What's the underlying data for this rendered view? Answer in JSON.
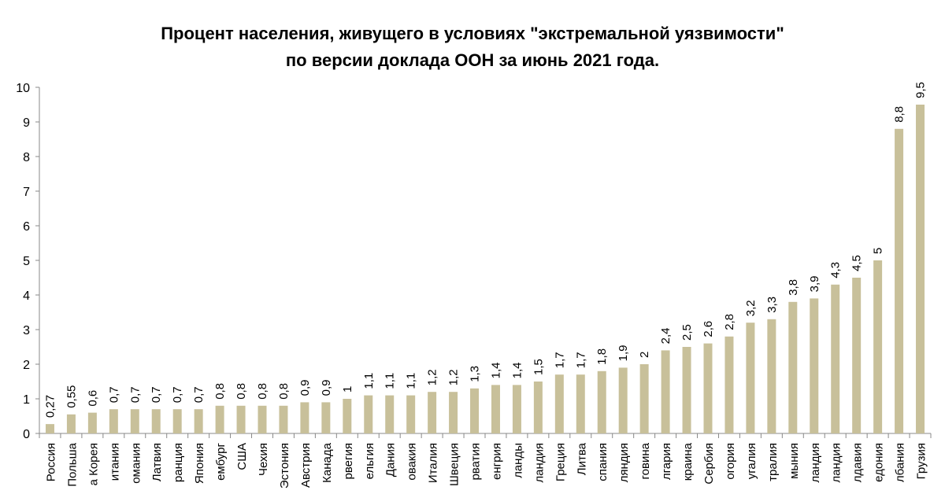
{
  "chart_data": {
    "type": "bar",
    "title_lines": [
      "Процент населения, живущего в условиях \"экстремальной уязвимости\"",
      "по версии доклада ООН за июнь 2021 года."
    ],
    "xlabel": "",
    "ylabel": "",
    "ylim": [
      0,
      10
    ],
    "yticks": [
      0,
      1,
      2,
      3,
      4,
      5,
      6,
      7,
      8,
      9,
      10
    ],
    "grid": false,
    "bar_color": "#c8c09a",
    "categories": [
      "Россия",
      "Польша",
      "а Корея",
      "итания",
      "омания",
      "Латвия",
      "ранция",
      "Япония",
      "ембург",
      "США",
      "Чехия",
      "Эстония",
      "Австрия",
      "Канада",
      "рвегия",
      "ельгия",
      "Дания",
      "овакия",
      "Италия",
      "Швеция",
      "рватия",
      "енгрия",
      "ланды",
      "ландия",
      "Греция",
      "Литва",
      "спания",
      "ляндия",
      "говина",
      "лгария",
      "краина",
      "Сербия",
      "огория",
      "угалия",
      "тралия",
      "мыния",
      "ландия",
      "ландия",
      "лдавия",
      "едония",
      "лбания",
      "Грузия"
    ],
    "values": [
      0.27,
      0.55,
      0.6,
      0.7,
      0.7,
      0.7,
      0.7,
      0.7,
      0.8,
      0.8,
      0.8,
      0.8,
      0.9,
      0.9,
      1,
      1.1,
      1.1,
      1.1,
      1.2,
      1.2,
      1.3,
      1.4,
      1.4,
      1.5,
      1.7,
      1.7,
      1.8,
      1.9,
      2,
      2.4,
      2.5,
      2.6,
      2.8,
      3.2,
      3.3,
      3.8,
      3.9,
      4.3,
      4.5,
      5,
      8.8,
      9.5
    ],
    "data_labels": [
      "0,27",
      "0,55",
      "0,6",
      "0,7",
      "0,7",
      "0,7",
      "0,7",
      "0,7",
      "0,8",
      "0,8",
      "0,8",
      "0,8",
      "0,9",
      "0,9",
      "1",
      "1,1",
      "1,1",
      "1,1",
      "1,2",
      "1,2",
      "1,3",
      "1,4",
      "1,4",
      "1,5",
      "1,7",
      "1,7",
      "1,8",
      "1,9",
      "2",
      "2,4",
      "2,5",
      "2,6",
      "2,8",
      "3,2",
      "3,3",
      "3,8",
      "3,9",
      "4,3",
      "4,5",
      "5",
      "8,8",
      "9,5"
    ]
  }
}
